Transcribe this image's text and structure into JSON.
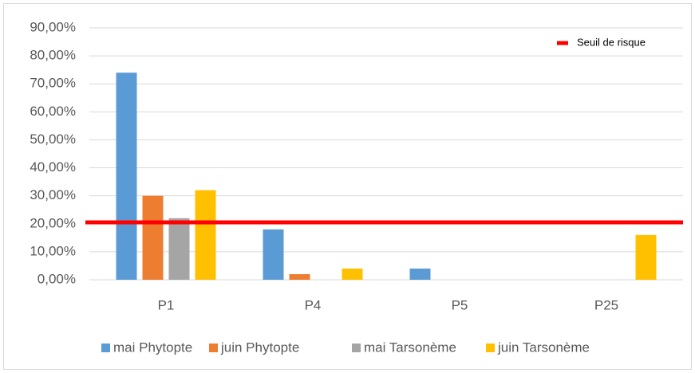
{
  "chart_data": {
    "type": "bar",
    "categories": [
      "P1",
      "P4",
      "P5",
      "P25"
    ],
    "series": [
      {
        "name": "mai Phytopte",
        "color": "#5b9bd5",
        "values": [
          74,
          18,
          4,
          0
        ]
      },
      {
        "name": "juin Phytopte",
        "color": "#ed7d31",
        "values": [
          30,
          2,
          0,
          0
        ]
      },
      {
        "name": "mai Tarsonème",
        "color": "#a5a5a5",
        "values": [
          22,
          0,
          0,
          0
        ]
      },
      {
        "name": "juin Tarsonème",
        "color": "#ffc000",
        "values": [
          32,
          4,
          0,
          16
        ]
      }
    ],
    "threshold": {
      "name": "Seuil de risque",
      "value": 20.5,
      "color": "#ff0000"
    },
    "ylim": [
      0,
      90
    ],
    "yticks": [
      {
        "value": 0,
        "label": "0,00%"
      },
      {
        "value": 10,
        "label": "10,00%"
      },
      {
        "value": 20,
        "label": "20,00%"
      },
      {
        "value": 30,
        "label": "30,00%"
      },
      {
        "value": 40,
        "label": "40,00%"
      },
      {
        "value": 50,
        "label": "50,00%"
      },
      {
        "value": 60,
        "label": "60,00%"
      },
      {
        "value": 70,
        "label": "70,00%"
      },
      {
        "value": 80,
        "label": "80,00%"
      },
      {
        "value": 90,
        "label": "90,00%"
      }
    ],
    "grid": true,
    "legend": "bottom",
    "threshold_legend": "top-right"
  }
}
